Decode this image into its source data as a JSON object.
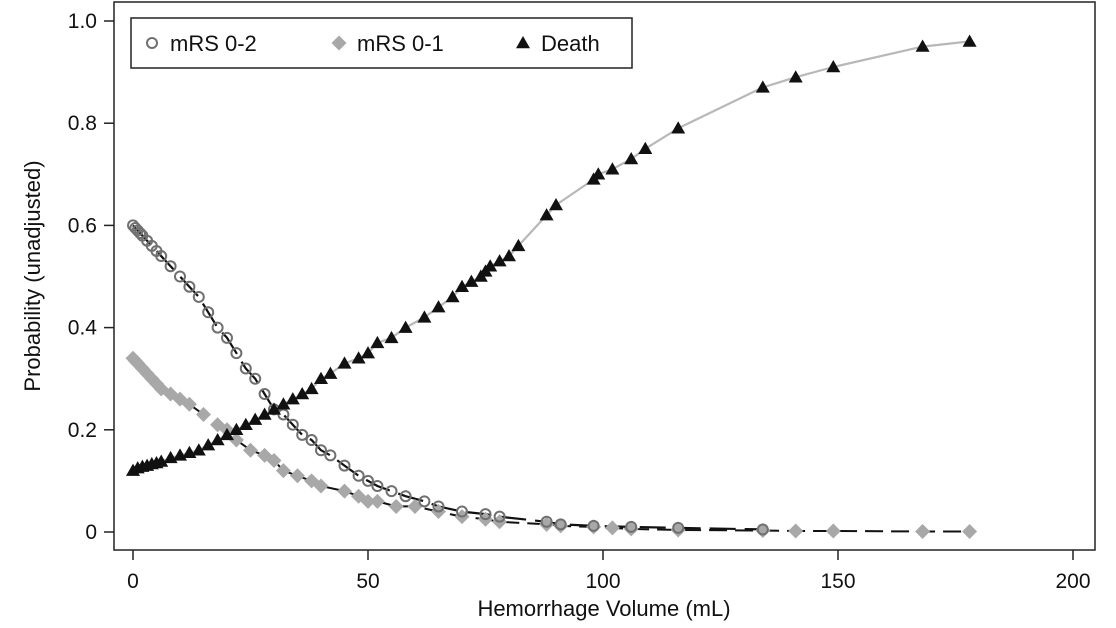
{
  "chart_data": {
    "type": "scatter",
    "xlabel": "Hemorrhage Volume (mL)",
    "ylabel": "Probability (unadjusted)",
    "xlim": [
      0,
      200
    ],
    "ylim": [
      0,
      1.0
    ],
    "xticks": [
      0,
      50,
      100,
      150,
      200
    ],
    "yticks": [
      0,
      0.2,
      0.4,
      0.6,
      0.8,
      1.0
    ],
    "xtick_labels": [
      "0",
      "50",
      "100",
      "150",
      "200"
    ],
    "ytick_labels": [
      "0",
      "0.2",
      "0.4",
      "0.6",
      "0.8",
      "1.0"
    ],
    "legend_position": "top-left",
    "series": [
      {
        "name": "mRS 0-2",
        "marker": "circle",
        "color": "#707070",
        "curve_style": "long-dash",
        "x": [
          0,
          0.5,
          1,
          1.5,
          2,
          3,
          4,
          5,
          6,
          8,
          10,
          12,
          14,
          16,
          18,
          20,
          22,
          24,
          26,
          28,
          30,
          32,
          34,
          36,
          38,
          40,
          42,
          45,
          48,
          50,
          52,
          55,
          58,
          62,
          65,
          70,
          75,
          78,
          88,
          91,
          98,
          106,
          116,
          134
        ],
        "values": [
          0.6,
          0.595,
          0.59,
          0.585,
          0.58,
          0.57,
          0.56,
          0.55,
          0.54,
          0.52,
          0.5,
          0.48,
          0.46,
          0.43,
          0.4,
          0.38,
          0.35,
          0.32,
          0.3,
          0.27,
          0.24,
          0.23,
          0.21,
          0.19,
          0.18,
          0.16,
          0.15,
          0.13,
          0.11,
          0.1,
          0.09,
          0.08,
          0.07,
          0.06,
          0.05,
          0.04,
          0.035,
          0.03,
          0.02,
          0.015,
          0.012,
          0.01,
          0.008,
          0.005
        ]
      },
      {
        "name": "mRS 0-1",
        "marker": "diamond",
        "color": "#a8a8a8",
        "curve_style": "dash",
        "x": [
          0,
          0.5,
          1,
          2,
          3,
          4,
          5,
          6,
          8,
          10,
          12,
          15,
          18,
          20,
          22,
          25,
          28,
          30,
          32,
          35,
          38,
          40,
          45,
          48,
          50,
          52,
          56,
          60,
          65,
          70,
          75,
          78,
          88,
          91,
          98,
          102,
          106,
          116,
          134,
          141,
          149,
          168,
          178
        ],
        "values": [
          0.34,
          0.335,
          0.33,
          0.32,
          0.31,
          0.3,
          0.29,
          0.28,
          0.27,
          0.26,
          0.25,
          0.23,
          0.21,
          0.2,
          0.18,
          0.16,
          0.15,
          0.14,
          0.12,
          0.11,
          0.1,
          0.09,
          0.08,
          0.07,
          0.06,
          0.06,
          0.05,
          0.05,
          0.04,
          0.03,
          0.025,
          0.02,
          0.015,
          0.012,
          0.01,
          0.008,
          0.006,
          0.004,
          0.003,
          0.002,
          0.002,
          0.001,
          0.001
        ]
      },
      {
        "name": "Death",
        "marker": "triangle",
        "color": "#111111",
        "curve_style": "solid-light",
        "x": [
          0,
          1,
          2,
          3,
          4,
          5,
          6,
          8,
          10,
          12,
          14,
          16,
          18,
          20,
          22,
          24,
          26,
          28,
          30,
          32,
          34,
          36,
          38,
          40,
          42,
          45,
          48,
          50,
          52,
          55,
          58,
          62,
          65,
          68,
          70,
          72,
          74,
          75,
          76,
          78,
          80,
          82,
          88,
          90,
          98,
          99,
          102,
          106,
          109,
          116,
          134,
          141,
          149,
          168,
          178
        ],
        "values": [
          0.12,
          0.125,
          0.128,
          0.13,
          0.133,
          0.135,
          0.138,
          0.145,
          0.15,
          0.155,
          0.16,
          0.17,
          0.18,
          0.19,
          0.2,
          0.21,
          0.22,
          0.23,
          0.24,
          0.25,
          0.26,
          0.27,
          0.28,
          0.3,
          0.31,
          0.33,
          0.34,
          0.35,
          0.37,
          0.38,
          0.4,
          0.42,
          0.44,
          0.46,
          0.48,
          0.49,
          0.5,
          0.51,
          0.52,
          0.53,
          0.54,
          0.56,
          0.62,
          0.64,
          0.69,
          0.7,
          0.71,
          0.73,
          0.75,
          0.79,
          0.87,
          0.89,
          0.91,
          0.95,
          0.96
        ]
      }
    ]
  }
}
